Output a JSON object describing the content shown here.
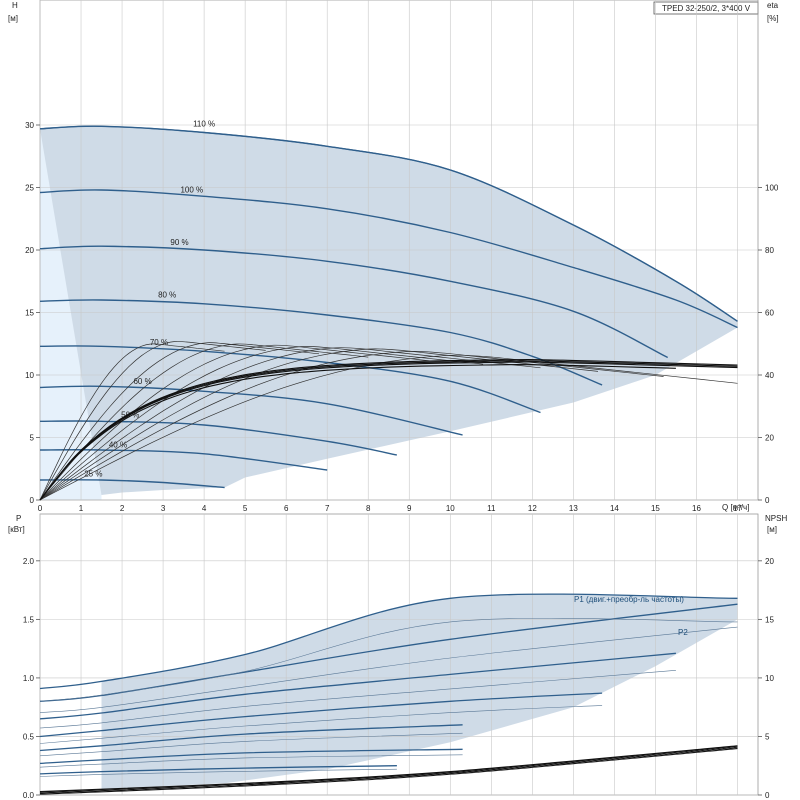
{
  "title_box": "TPED 32-250/2, 3*400 V",
  "colors": {
    "envelope_fill": "#cfdbe7",
    "envelope_edge": "#2f5f8c",
    "light_fill": "#e6f1fb",
    "curve": "#2f5f8c",
    "thin_curve": "#333333",
    "grid": "#c8c8c8"
  },
  "chart_data": [
    {
      "id": "head",
      "type": "line",
      "x_axis": {
        "label": "Q [м³/ч]",
        "range": [
          0,
          17.5
        ],
        "ticks": [
          "0",
          "1",
          "2",
          "3",
          "4",
          "5",
          "6",
          "7",
          "8",
          "9",
          "10",
          "11",
          "12",
          "13",
          "14",
          "15",
          "16",
          "17"
        ]
      },
      "y_axis": {
        "label_top": "H",
        "label_unit": "[м]",
        "range": [
          0,
          40
        ],
        "ticks": [
          "0",
          "5",
          "10",
          "15",
          "20",
          "25",
          "30"
        ]
      },
      "y2_axis": {
        "label_top": "eta",
        "label_unit": "[%]",
        "range": [
          0,
          160
        ],
        "ticks": [
          "0",
          "20",
          "40",
          "60",
          "80",
          "100"
        ]
      },
      "grid": true,
      "speed_labels": [
        "110 %",
        "100 %",
        "90 %",
        "80 %",
        "70 %",
        "60 %",
        "50 %",
        "40 %",
        "25 %"
      ],
      "speed_curves": [
        {
          "label": "110 %",
          "x": [
            0,
            1.5,
            4,
            7,
            10,
            13,
            15.5,
            17
          ],
          "y": [
            29.7,
            29.9,
            29.4,
            28.3,
            26.4,
            22.0,
            17.5,
            14.3
          ]
        },
        {
          "label": "100 %",
          "x": [
            0,
            1.5,
            4,
            7,
            10,
            13,
            15.5,
            17
          ],
          "y": [
            24.6,
            24.8,
            24.3,
            23.3,
            21.4,
            18.6,
            16.0,
            13.8
          ]
        },
        {
          "label": "90 %",
          "x": [
            0,
            1.5,
            4,
            7,
            10,
            13,
            15.3
          ],
          "y": [
            20.1,
            20.3,
            20.0,
            19.1,
            17.5,
            15.1,
            11.4
          ]
        },
        {
          "label": "80 %",
          "x": [
            0,
            1.5,
            4,
            7,
            10,
            12,
            13.7
          ],
          "y": [
            15.9,
            16.0,
            15.7,
            14.8,
            13.4,
            11.5,
            9.2
          ]
        },
        {
          "label": "70 %",
          "x": [
            0,
            1.5,
            4,
            7,
            10,
            12.2
          ],
          "y": [
            12.3,
            12.3,
            11.9,
            11.0,
            9.5,
            7.0
          ]
        },
        {
          "label": "60 %",
          "x": [
            0,
            1.5,
            4,
            7,
            10.3
          ],
          "y": [
            9.0,
            9.1,
            8.7,
            7.7,
            5.2
          ]
        },
        {
          "label": "50 %",
          "x": [
            0,
            1.5,
            4,
            7,
            8.7
          ],
          "y": [
            6.3,
            6.3,
            6.0,
            4.7,
            3.6
          ]
        },
        {
          "label": "40 %",
          "x": [
            0,
            1.5,
            4,
            7
          ],
          "y": [
            4.0,
            4.0,
            3.7,
            2.4
          ]
        },
        {
          "label": "25 %",
          "x": [
            0,
            1.5,
            3,
            4.5
          ],
          "y": [
            1.6,
            1.6,
            1.4,
            1.0
          ]
        }
      ],
      "envelope": {
        "x": [
          0,
          1.5,
          4,
          7,
          10,
          13,
          15.5,
          17,
          17,
          15,
          13,
          10,
          7,
          5,
          4.5,
          3,
          2,
          1.5
        ],
        "y": [
          29.7,
          29.9,
          29.4,
          28.3,
          26.4,
          22.0,
          17.5,
          14.3,
          13.8,
          10.0,
          7.8,
          5.5,
          3.3,
          1.8,
          1.0,
          0.8,
          0.6,
          29.9
        ]
      }
    },
    {
      "id": "power",
      "type": "line",
      "x_axis": {
        "range": [
          0,
          17.5
        ]
      },
      "y_axis": {
        "label_top": "P",
        "label_unit": "[кВт]",
        "range": [
          0,
          2.4
        ],
        "ticks": [
          "0.0",
          "0.5",
          "1.0",
          "1.5",
          "2.0"
        ]
      },
      "y2_axis": {
        "label_top": "NPSH",
        "label_unit": "[м]",
        "range": [
          0,
          24
        ],
        "ticks": [
          "0",
          "5",
          "10",
          "15",
          "20"
        ]
      },
      "grid": true,
      "annotations": [
        "P1 (двиг.+преобр-ль частоты)",
        "P2"
      ],
      "p1_curves": [
        {
          "x": [
            0,
            1.5,
            5,
            10,
            17
          ],
          "y": [
            0.91,
            0.97,
            1.2,
            1.68,
            1.68
          ]
        },
        {
          "x": [
            0,
            1.5,
            5,
            10,
            17
          ],
          "y": [
            0.8,
            0.85,
            1.05,
            1.33,
            1.63
          ]
        },
        {
          "x": [
            0,
            1.5,
            5,
            10,
            15.5
          ],
          "y": [
            0.65,
            0.7,
            0.86,
            1.03,
            1.21
          ]
        },
        {
          "x": [
            0,
            1.5,
            5,
            10,
            13.7
          ],
          "y": [
            0.5,
            0.55,
            0.67,
            0.8,
            0.87
          ]
        },
        {
          "x": [
            0,
            1.5,
            5,
            10.3
          ],
          "y": [
            0.38,
            0.42,
            0.52,
            0.6
          ]
        },
        {
          "x": [
            0,
            1.5,
            5,
            10.3
          ],
          "y": [
            0.27,
            0.3,
            0.36,
            0.39
          ]
        },
        {
          "x": [
            0,
            1.5,
            5,
            8.7
          ],
          "y": [
            0.18,
            0.2,
            0.23,
            0.25
          ]
        }
      ],
      "npsh_curve": {
        "x": [
          0,
          5,
          10,
          17
        ],
        "y": [
          0.3,
          1.0,
          2.0,
          4.2
        ]
      }
    }
  ]
}
